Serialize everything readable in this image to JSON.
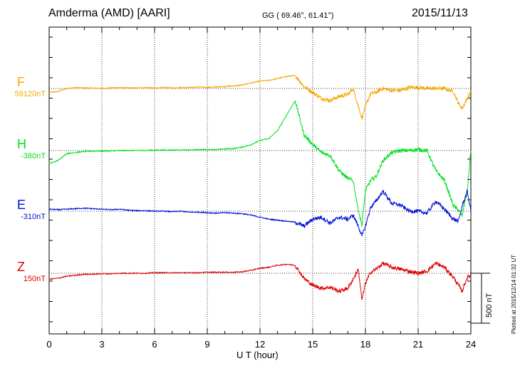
{
  "header": {
    "station": "Amderma (AMD)  [AARI]",
    "coords": "GG ( 69.46°,  61.41°)",
    "date": "2015/11/13"
  },
  "footer": {
    "plotted": "Plotted at 2015/12/14 01:32 UT",
    "scale_label": "500 nT"
  },
  "chart_data": {
    "type": "line",
    "xlabel": "U T (hour)",
    "xlim": [
      0,
      24
    ],
    "xticks": [
      "0",
      "3",
      "6",
      "9",
      "12",
      "15",
      "18",
      "21",
      "24"
    ],
    "y_units": "nT (offset from channel baseline)",
    "scale_bar_nT": 500,
    "grid": true,
    "series": [
      {
        "name": "F",
        "baseline": "59120nT",
        "color": "#f5a800",
        "x": [
          0,
          0.5,
          1,
          1.5,
          2,
          2.5,
          3,
          3.5,
          4,
          4.5,
          5,
          5.5,
          6,
          6.5,
          7,
          7.5,
          8,
          8.5,
          9,
          9.5,
          10,
          10.5,
          11,
          11.5,
          12,
          12.5,
          13,
          13.5,
          14,
          14.5,
          15,
          15.5,
          16,
          16.5,
          17,
          17.3,
          17.6,
          17.8,
          18,
          18.3,
          18.6,
          19,
          19.5,
          20,
          20.5,
          21,
          21.5,
          22,
          22.5,
          23,
          23.3,
          23.5,
          23.8,
          24
        ],
        "values": [
          -40,
          -30,
          0,
          10,
          5,
          5,
          0,
          5,
          10,
          5,
          5,
          10,
          5,
          10,
          5,
          10,
          10,
          15,
          10,
          15,
          20,
          25,
          35,
          55,
          75,
          80,
          100,
          120,
          130,
          20,
          -40,
          -100,
          -120,
          -80,
          -60,
          0,
          -180,
          -300,
          -180,
          -50,
          -40,
          0,
          -20,
          -20,
          10,
          10,
          0,
          0,
          0,
          -30,
          -150,
          -200,
          -100,
          -30
        ]
      },
      {
        "name": "H",
        "baseline": "-380nT",
        "color": "#00e020",
        "x": [
          0,
          0.5,
          1,
          1.5,
          2,
          2.5,
          3,
          3.5,
          4,
          4.5,
          5,
          5.5,
          6,
          6.5,
          7,
          7.5,
          8,
          8.5,
          9,
          9.5,
          10,
          10.5,
          11,
          11.5,
          12,
          12.5,
          13,
          13.5,
          14,
          14.5,
          15,
          15.5,
          16,
          16.5,
          17,
          17.3,
          17.6,
          17.8,
          18,
          18.3,
          18.6,
          19,
          19.5,
          20,
          20.5,
          21,
          21.5,
          22,
          22.5,
          23,
          23.3,
          23.5,
          23.8,
          24
        ],
        "values": [
          -130,
          -100,
          -30,
          -20,
          -10,
          -5,
          -5,
          -5,
          0,
          0,
          0,
          0,
          5,
          5,
          5,
          5,
          5,
          10,
          10,
          10,
          15,
          20,
          35,
          60,
          100,
          120,
          200,
          350,
          500,
          160,
          60,
          -20,
          -50,
          -200,
          -280,
          -300,
          -600,
          -750,
          -400,
          -300,
          -260,
          -100,
          -20,
          0,
          0,
          10,
          0,
          -200,
          -300,
          -550,
          -600,
          -650,
          -400,
          0
        ]
      },
      {
        "name": "E",
        "baseline": "-310nT",
        "color": "#0010d8",
        "x": [
          0,
          0.5,
          1,
          1.5,
          2,
          2.5,
          3,
          3.5,
          4,
          4.5,
          5,
          5.5,
          6,
          6.5,
          7,
          7.5,
          8,
          8.5,
          9,
          9.5,
          10,
          10.5,
          11,
          11.5,
          12,
          12.5,
          13,
          13.5,
          14,
          14.5,
          15,
          15.5,
          16,
          16.5,
          17,
          17.3,
          17.6,
          17.8,
          18,
          18.3,
          18.6,
          19,
          19.5,
          20,
          20.5,
          21,
          21.5,
          22,
          22.5,
          23,
          23.3,
          23.5,
          23.8,
          24
        ],
        "values": [
          20,
          15,
          20,
          25,
          30,
          25,
          20,
          15,
          20,
          10,
          5,
          5,
          0,
          0,
          -5,
          0,
          -10,
          -10,
          -15,
          -20,
          -15,
          -20,
          -25,
          -40,
          -60,
          -80,
          -90,
          -100,
          -110,
          -150,
          -80,
          -60,
          -120,
          -60,
          -80,
          -40,
          -150,
          -250,
          -150,
          40,
          100,
          200,
          80,
          60,
          0,
          0,
          -20,
          100,
          20,
          -80,
          -100,
          50,
          200,
          0
        ]
      },
      {
        "name": "Z",
        "baseline": "150nT",
        "color": "#e00000",
        "x": [
          0,
          0.5,
          1,
          1.5,
          2,
          2.5,
          3,
          3.5,
          4,
          4.5,
          5,
          5.5,
          6,
          6.5,
          7,
          7.5,
          8,
          8.5,
          9,
          9.5,
          10,
          10.5,
          11,
          11.5,
          12,
          12.5,
          13,
          13.5,
          14,
          14.5,
          15,
          15.5,
          16,
          16.5,
          17,
          17.3,
          17.6,
          17.8,
          18,
          18.3,
          18.6,
          19,
          19.5,
          20,
          20.5,
          21,
          21.5,
          22,
          22.5,
          23,
          23.3,
          23.5,
          23.8,
          24
        ],
        "values": [
          -60,
          -50,
          -30,
          -20,
          -10,
          -10,
          -5,
          -5,
          0,
          0,
          0,
          0,
          5,
          5,
          5,
          5,
          5,
          5,
          10,
          10,
          10,
          10,
          15,
          30,
          50,
          60,
          80,
          90,
          80,
          -50,
          -120,
          -150,
          -140,
          -180,
          -150,
          -60,
          40,
          -270,
          -100,
          10,
          40,
          100,
          60,
          40,
          20,
          0,
          20,
          100,
          60,
          -40,
          -120,
          -180,
          -40,
          -20
        ]
      }
    ]
  }
}
